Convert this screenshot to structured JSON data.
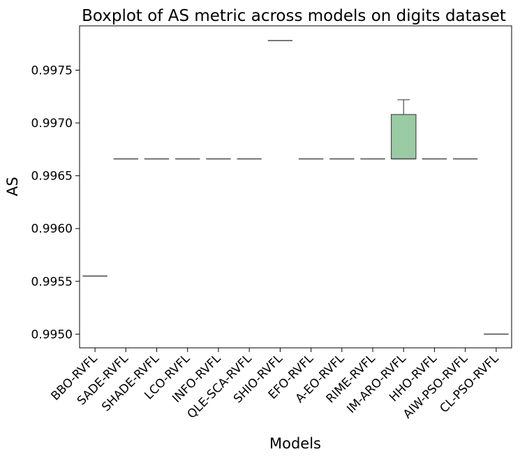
{
  "chart_data": {
    "type": "boxplot",
    "title": "Boxplot of AS metric across models on digits dataset",
    "xlabel": "Models",
    "ylabel": "AS",
    "ylim": [
      0.99487,
      0.99792
    ],
    "yticks": [
      "0.9950",
      "0.9955",
      "0.9960",
      "0.9965",
      "0.9970",
      "0.9975"
    ],
    "ytick_values": [
      0.995,
      0.9955,
      0.996,
      0.9965,
      0.997,
      0.9975
    ],
    "grid": false,
    "box_color": "#9ACBA5",
    "line_color": "#4A4A4A",
    "categories": [
      "BBO-RVFL",
      "SADE-RVFL",
      "SHADE-RVFL",
      "LCO-RVFL",
      "INFO-RVFL",
      "QLE-SCA-RVFL",
      "SHIO-RVFL",
      "EFO-RVFL",
      "A-EO-RVFL",
      "RIME-RVFL",
      "IM-ARO-RVFL",
      "HHO-RVFL",
      "AIW-PSO-RVFL",
      "CL-PSO-RVFL"
    ],
    "boxes": [
      {
        "min": 0.99555,
        "q1": 0.99555,
        "median": 0.99555,
        "q3": 0.99555,
        "max": 0.99555
      },
      {
        "min": 0.99666,
        "q1": 0.99666,
        "median": 0.99666,
        "q3": 0.99666,
        "max": 0.99666
      },
      {
        "min": 0.99666,
        "q1": 0.99666,
        "median": 0.99666,
        "q3": 0.99666,
        "max": 0.99666
      },
      {
        "min": 0.99666,
        "q1": 0.99666,
        "median": 0.99666,
        "q3": 0.99666,
        "max": 0.99666
      },
      {
        "min": 0.99666,
        "q1": 0.99666,
        "median": 0.99666,
        "q3": 0.99666,
        "max": 0.99666
      },
      {
        "min": 0.99666,
        "q1": 0.99666,
        "median": 0.99666,
        "q3": 0.99666,
        "max": 0.99666
      },
      {
        "min": 0.99778,
        "q1": 0.99778,
        "median": 0.99778,
        "q3": 0.99778,
        "max": 0.99778
      },
      {
        "min": 0.99666,
        "q1": 0.99666,
        "median": 0.99666,
        "q3": 0.99666,
        "max": 0.99666
      },
      {
        "min": 0.99666,
        "q1": 0.99666,
        "median": 0.99666,
        "q3": 0.99666,
        "max": 0.99666
      },
      {
        "min": 0.99666,
        "q1": 0.99666,
        "median": 0.99666,
        "q3": 0.99666,
        "max": 0.99666
      },
      {
        "min": 0.99666,
        "q1": 0.99666,
        "median": 0.99666,
        "q3": 0.99708,
        "max": 0.99722
      },
      {
        "min": 0.99666,
        "q1": 0.99666,
        "median": 0.99666,
        "q3": 0.99666,
        "max": 0.99666
      },
      {
        "min": 0.99666,
        "q1": 0.99666,
        "median": 0.99666,
        "q3": 0.99666,
        "max": 0.99666
      },
      {
        "min": 0.995,
        "q1": 0.995,
        "median": 0.995,
        "q3": 0.995,
        "max": 0.995
      }
    ]
  }
}
